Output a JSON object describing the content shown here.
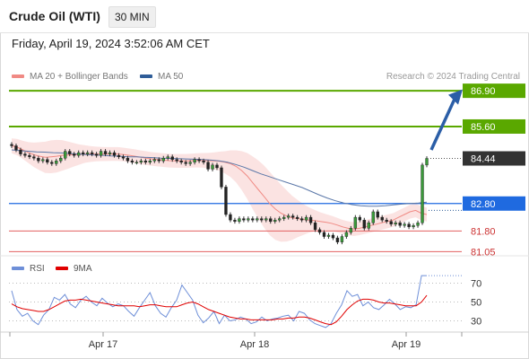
{
  "header": {
    "title": "Crude Oil (WTI)",
    "interval": "30 MIN"
  },
  "datetime": "Friday, April 19, 2024 3:52:06 AM CET",
  "legend": [
    {
      "label": "MA 20 + Bollinger Bands",
      "color": "#f08a84"
    },
    {
      "label": "MA 50",
      "color": "#2f5d98"
    }
  ],
  "source": "Research © 2024 Trading Central",
  "colors": {
    "support_resistance": "#5aa800",
    "pivot": "#1f6ae0",
    "support": "#e26060",
    "last": "#333333",
    "arrow": "#2b5ea7",
    "rsi": "#6e8fd8",
    "rsi_ma": "#e00000"
  },
  "chart_data": [
    {
      "type": "candlestick",
      "title": "",
      "x_ticks": [
        "Apr 17",
        "Apr 18",
        "Apr 19"
      ],
      "ylim": [
        80.9,
        87.1
      ],
      "levels": [
        {
          "value": 86.9,
          "label": "86.90",
          "kind": "target"
        },
        {
          "value": 85.6,
          "label": "85.60",
          "kind": "resistance"
        },
        {
          "value": 84.44,
          "label": "84.44",
          "kind": "last"
        },
        {
          "value": 82.8,
          "label": "82.80",
          "kind": "pivot"
        },
        {
          "value": 81.8,
          "label": "81.80",
          "kind": "support"
        },
        {
          "value": 81.05,
          "label": "81.05",
          "kind": "support"
        }
      ],
      "series": [
        {
          "name": "Price (close)",
          "values": [
            84.9,
            84.75,
            84.6,
            84.55,
            84.5,
            84.45,
            84.35,
            84.4,
            84.3,
            84.25,
            84.35,
            84.45,
            84.7,
            84.6,
            84.55,
            84.65,
            84.6,
            84.65,
            84.6,
            84.55,
            84.7,
            84.6,
            84.65,
            84.55,
            84.5,
            84.45,
            84.35,
            84.3,
            84.3,
            84.35,
            84.3,
            84.35,
            84.4,
            84.35,
            84.45,
            84.5,
            84.4,
            84.35,
            84.3,
            84.25,
            84.3,
            84.4,
            84.35,
            84.3,
            84.05,
            84.2,
            84.1,
            83.4,
            82.4,
            82.2,
            82.15,
            82.25,
            82.2,
            82.25,
            82.2,
            82.25,
            82.2,
            82.25,
            82.15,
            82.2,
            82.25,
            82.3,
            82.35,
            82.3,
            82.25,
            82.2,
            82.3,
            82.1,
            81.85,
            81.75,
            81.6,
            81.65,
            81.55,
            81.4,
            81.6,
            81.75,
            81.9,
            82.3,
            82.2,
            81.9,
            82.1,
            82.5,
            82.3,
            82.2,
            82.15,
            82.05,
            82.1,
            82.0,
            82.05,
            81.95,
            82.0,
            82.1,
            84.2,
            84.44
          ]
        },
        {
          "name": "MA 20",
          "values": [
            84.9,
            84.85,
            84.75,
            84.65,
            84.57,
            84.52,
            84.48,
            84.5,
            84.52,
            84.55,
            84.56,
            84.57,
            84.58,
            84.6,
            84.6,
            84.6,
            84.6,
            84.6,
            84.6,
            84.6,
            84.58,
            84.55,
            84.52,
            84.48,
            84.45,
            84.42,
            84.4,
            84.38,
            84.36,
            84.35,
            84.35,
            84.35,
            84.36,
            84.37,
            84.37,
            84.36,
            84.35,
            84.34,
            84.3,
            84.25,
            84.15,
            84.0,
            83.8,
            83.55,
            83.3,
            83.05,
            82.8,
            82.6,
            82.45,
            82.35,
            82.28,
            82.25,
            82.22,
            82.2,
            82.18,
            82.15,
            82.12,
            82.08,
            82.02,
            81.95,
            81.9,
            81.87,
            81.9,
            81.95,
            82.0,
            82.05,
            82.1,
            82.15,
            82.2,
            82.3,
            82.4,
            82.5,
            82.55,
            82.45,
            82.4
          ]
        },
        {
          "name": "MA 50",
          "values": [
            84.75,
            84.72,
            84.7,
            84.68,
            84.67,
            84.65,
            84.64,
            84.62,
            84.6,
            84.58,
            84.56,
            84.55,
            84.53,
            84.52,
            84.5,
            84.5,
            84.48,
            84.47,
            84.45,
            84.44,
            84.43,
            84.42,
            84.41,
            84.4,
            84.38,
            84.35,
            84.3,
            84.22,
            84.12,
            84.0,
            83.88,
            83.78,
            83.68,
            83.58,
            83.48,
            83.38,
            83.25,
            83.12,
            83.0,
            82.9,
            82.82,
            82.76,
            82.72,
            82.7,
            82.7,
            82.72,
            82.75,
            82.78,
            82.8,
            82.82,
            82.85
          ]
        }
      ]
    },
    {
      "type": "line",
      "title": "",
      "legend": [
        "RSI",
        "9MA"
      ],
      "y_ticks": [
        70,
        50,
        30
      ],
      "ylim": [
        20,
        80
      ],
      "series": [
        {
          "name": "RSI",
          "values": [
            62,
            42,
            35,
            38,
            30,
            26,
            36,
            42,
            55,
            52,
            58,
            48,
            44,
            52,
            56,
            50,
            46,
            54,
            49,
            45,
            48,
            46,
            40,
            35,
            44,
            52,
            60,
            46,
            38,
            34,
            44,
            52,
            68,
            60,
            52,
            36,
            28,
            33,
            40,
            27,
            36,
            30,
            31,
            34,
            32,
            27,
            29,
            34,
            30,
            32,
            33,
            35,
            36,
            30,
            40,
            38,
            31,
            27,
            25,
            23,
            27,
            38,
            47,
            62,
            56,
            58,
            46,
            50,
            44,
            42,
            47,
            53,
            48,
            42,
            45,
            44,
            47,
            78,
            78
          ]
        },
        {
          "name": "9MA",
          "values": [
            48,
            45,
            43,
            42,
            41,
            40,
            40,
            42,
            45,
            48,
            51,
            52,
            52,
            53,
            52,
            51,
            50,
            49,
            48,
            47,
            46,
            46,
            46,
            46,
            45,
            46,
            47,
            47,
            46,
            45,
            45,
            45,
            47,
            49,
            50,
            48,
            45,
            42,
            40,
            38,
            36,
            34,
            33,
            32,
            32,
            31,
            31,
            31,
            31,
            31,
            32,
            32,
            33,
            33,
            34,
            34,
            33,
            31,
            29,
            27,
            26,
            29,
            35,
            42,
            47,
            51,
            53,
            53,
            52,
            50,
            49,
            49,
            48,
            47,
            46,
            46,
            46,
            50,
            57
          ]
        }
      ]
    }
  ]
}
